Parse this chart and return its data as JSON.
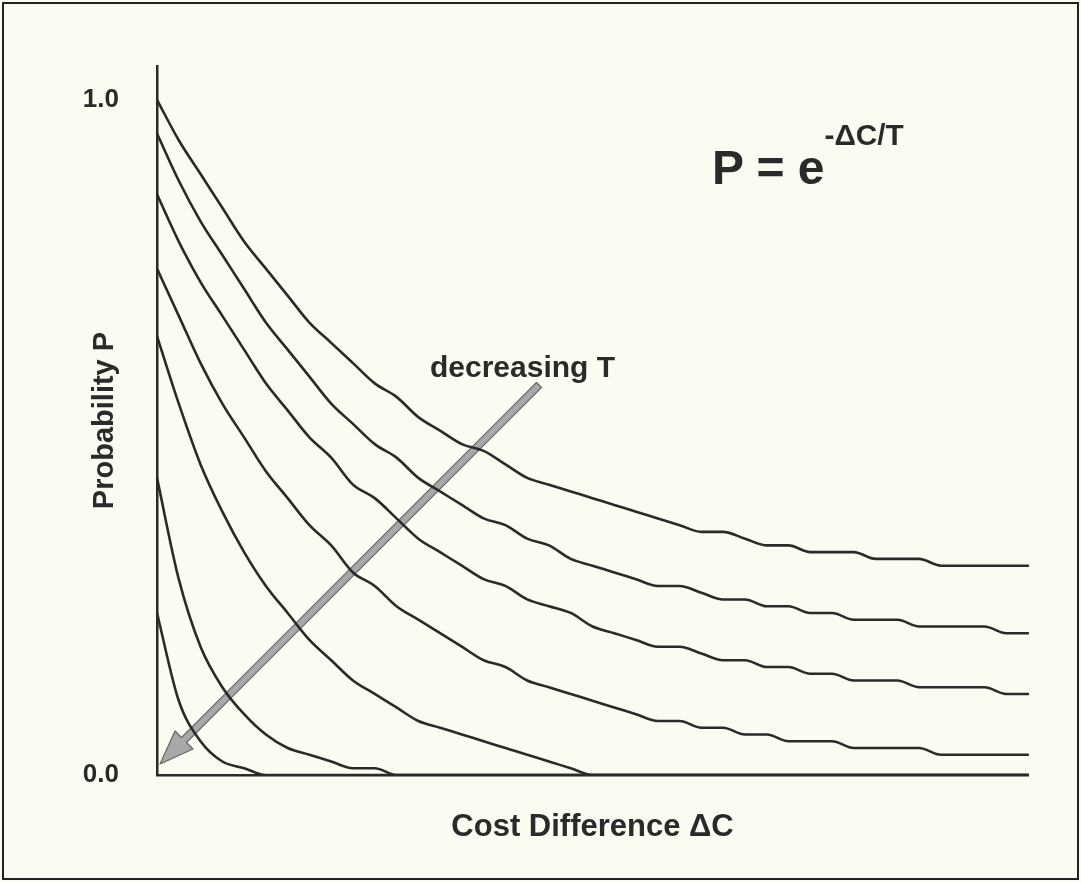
{
  "chart_data": {
    "type": "line",
    "xlabel": "Cost Difference ΔC",
    "ylabel": "Probability P",
    "categories": [
      null,
      null,
      null,
      null,
      null,
      null,
      null,
      null,
      null,
      null,
      null,
      null,
      null,
      null,
      null,
      null,
      null,
      null,
      null,
      null,
      null,
      null,
      null,
      null,
      null,
      null,
      null,
      null,
      null,
      null,
      null,
      null,
      null,
      null,
      null,
      null,
      null,
      null,
      null,
      null,
      null
    ],
    "ylim": [
      0,
      1.05
    ],
    "yticks": [
      {
        "value": 0,
        "label": "0.0"
      },
      {
        "value": 1,
        "label": "1.0"
      }
    ],
    "tick_labels": "y",
    "grid": false,
    "legend": false,
    "marker": "none",
    "line_style": "solid",
    "annotations": [
      "decreasing T",
      "P = e$^{-ΔC/T}$"
    ],
    "series": [
      {
        "color": "#2a2a2a",
        "values": [
          1.0,
          0.94,
          0.89,
          0.84,
          0.79,
          0.75,
          0.71,
          0.67,
          0.64,
          0.61,
          0.58,
          0.56,
          0.53,
          0.51,
          0.49,
          0.48,
          0.46,
          0.44,
          0.43,
          0.42,
          0.41,
          0.4,
          0.39,
          0.38,
          0.37,
          0.36,
          0.36,
          0.35,
          0.34,
          0.34,
          0.33,
          0.33,
          0.33,
          0.32,
          0.32,
          0.32,
          0.31,
          0.31,
          0.31,
          0.31,
          0.31
        ]
      },
      {
        "color": "#2a2a2a",
        "values": [
          0.95,
          0.88,
          0.82,
          0.77,
          0.72,
          0.67,
          0.63,
          0.59,
          0.55,
          0.52,
          0.49,
          0.47,
          0.44,
          0.42,
          0.4,
          0.38,
          0.37,
          0.35,
          0.34,
          0.32,
          0.31,
          0.3,
          0.29,
          0.28,
          0.28,
          0.27,
          0.26,
          0.26,
          0.25,
          0.25,
          0.24,
          0.24,
          0.23,
          0.23,
          0.23,
          0.22,
          0.22,
          0.22,
          0.22,
          0.21,
          0.21
        ]
      },
      {
        "color": "#2a2a2a",
        "values": [
          0.86,
          0.79,
          0.73,
          0.68,
          0.63,
          0.58,
          0.54,
          0.5,
          0.47,
          0.43,
          0.41,
          0.38,
          0.35,
          0.33,
          0.31,
          0.29,
          0.28,
          0.26,
          0.25,
          0.24,
          0.22,
          0.21,
          0.2,
          0.19,
          0.19,
          0.18,
          0.17,
          0.17,
          0.16,
          0.16,
          0.15,
          0.15,
          0.14,
          0.14,
          0.14,
          0.13,
          0.13,
          0.13,
          0.13,
          0.12,
          0.12
        ]
      },
      {
        "color": "#2a2a2a",
        "values": [
          0.75,
          0.68,
          0.61,
          0.55,
          0.5,
          0.45,
          0.41,
          0.37,
          0.34,
          0.3,
          0.28,
          0.25,
          0.23,
          0.21,
          0.19,
          0.17,
          0.16,
          0.14,
          0.13,
          0.12,
          0.11,
          0.1,
          0.09,
          0.08,
          0.08,
          0.07,
          0.07,
          0.06,
          0.06,
          0.05,
          0.05,
          0.05,
          0.04,
          0.04,
          0.04,
          0.04,
          0.03,
          0.03,
          0.03,
          0.03,
          0.03
        ]
      },
      {
        "color": "#2a2a2a",
        "values": [
          0.65,
          0.55,
          0.46,
          0.39,
          0.33,
          0.28,
          0.24,
          0.2,
          0.17,
          0.14,
          0.12,
          0.1,
          0.08,
          0.07,
          0.06,
          0.05,
          0.04,
          0.03,
          0.02,
          0.01,
          0,
          0,
          0,
          0,
          0,
          0,
          0,
          0,
          0,
          0,
          0,
          0,
          0,
          0,
          0,
          0,
          0,
          0,
          0,
          0,
          0
        ]
      },
      {
        "color": "#2a2a2a",
        "values": [
          0.44,
          0.29,
          0.19,
          0.13,
          0.09,
          0.06,
          0.04,
          0.03,
          0.02,
          0.01,
          0.01,
          0,
          0,
          0,
          0,
          0,
          0,
          0,
          0,
          0,
          0,
          0,
          0,
          0,
          0,
          0,
          0,
          0,
          0,
          0,
          0,
          0,
          0,
          0,
          0,
          0,
          0,
          0,
          0,
          0,
          0
        ]
      },
      {
        "color": "#2a2a2a",
        "values": [
          0.24,
          0.11,
          0.05,
          0.02,
          0.01,
          0,
          0,
          0,
          0,
          0,
          0,
          0,
          0,
          0,
          0,
          0,
          0,
          0,
          0,
          0,
          0,
          0,
          0,
          0,
          0,
          0,
          0,
          0,
          0,
          0,
          0,
          0,
          0,
          0,
          0,
          0,
          0,
          0,
          0,
          0,
          0
        ]
      }
    ]
  }
}
